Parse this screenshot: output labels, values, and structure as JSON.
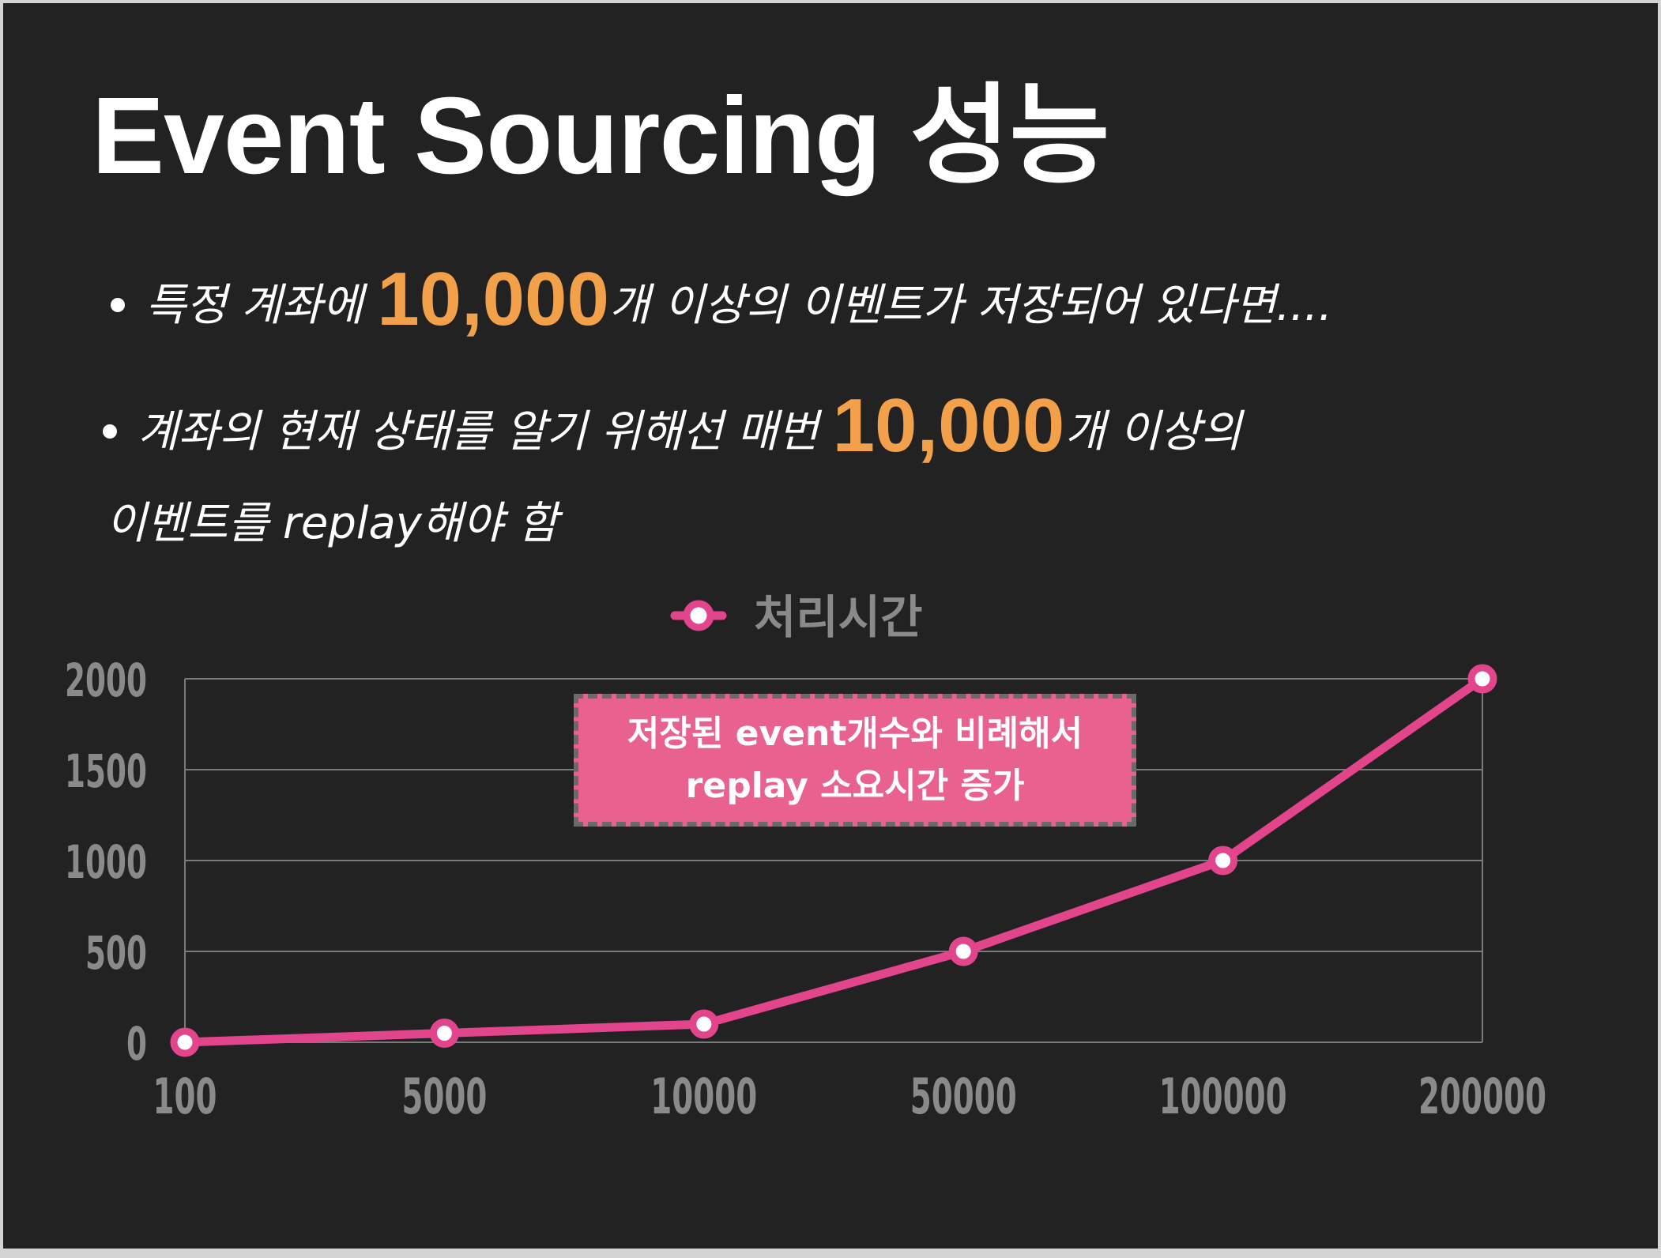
{
  "slide": {
    "title": "Event Sourcing 성능",
    "bullets": [
      {
        "before": "특정 계좌에 ",
        "highlight": "10,000",
        "after": "개 이상의 이벤트가 저장되어 있다면...."
      },
      {
        "before": "계좌의 현재 상태를 알기 위해선 매번 ",
        "highlight": "10,000",
        "after": "개 이상의",
        "continuation": "이벤트를 replay해야 함"
      }
    ],
    "callout": {
      "line1": "저장된 event개수와 비례해서",
      "line2": "replay 소요시간 증가"
    }
  },
  "colors": {
    "background": "#222222",
    "title": "#ffffff",
    "highlight": "#f2a14a",
    "series": "#e2458c",
    "callout_bg": "#e8618f",
    "axis_text": "#8a8a8a",
    "grid": "#7a7a7a"
  },
  "chart_data": {
    "type": "line",
    "categories": [
      "100",
      "5000",
      "10000",
      "50000",
      "100000",
      "200000"
    ],
    "series": [
      {
        "name": "처리시간",
        "values": [
          0,
          50,
          100,
          500,
          1000,
          2000
        ]
      }
    ],
    "title": "",
    "xlabel": "",
    "ylabel": "",
    "ylim": [
      0,
      2000
    ],
    "yticks": [
      "0",
      "500",
      "1000",
      "1500",
      "2000"
    ],
    "grid": true,
    "legend": "top-center",
    "marker": "circle"
  }
}
